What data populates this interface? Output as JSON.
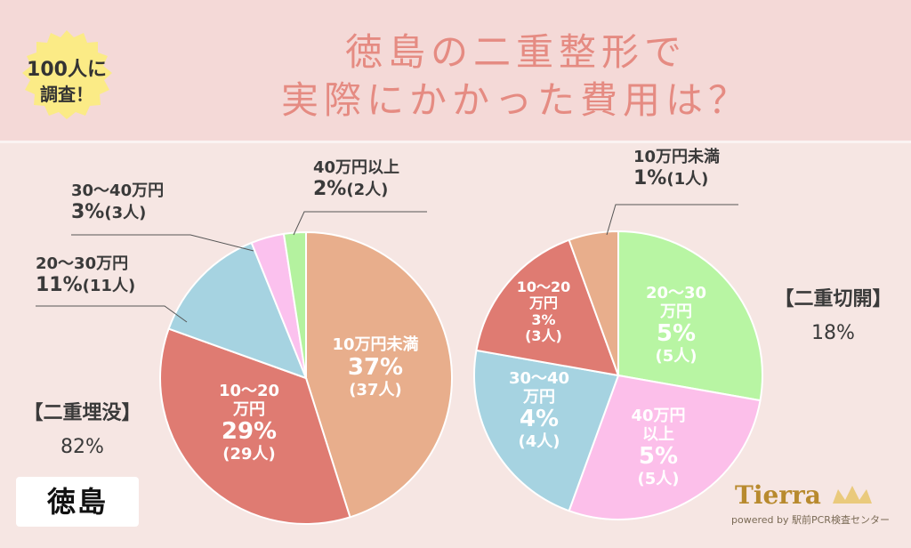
{
  "header": {
    "title_line1": "徳島の二重整形で",
    "title_line2": "実際にかかった費用は？",
    "badge_line1": "100人に",
    "badge_line2": "調査！"
  },
  "place_label": "徳島",
  "logo": {
    "name": "Tierra",
    "sub": "powered by 駅前PCR検査センター"
  },
  "colors": {
    "under10": "#e8ae8c",
    "r10_20": "#df7b72",
    "r20_30": "#a6d3e1",
    "r30_40": "#fbc1ee",
    "over40": "#b4f29f",
    "c20_30": "#b8f5a3",
    "c40plus": "#fcbfea",
    "c30_40": "#a6d3e1",
    "c10_20": "#df7b72",
    "cunder10": "#e8ae8c"
  },
  "chart_data": [
    {
      "type": "pie",
      "group": "【二重埋没】",
      "group_pct": "82%",
      "slices": [
        {
          "name": "10万円未満",
          "value": 37,
          "pct": "37%",
          "count": "(37人)"
        },
        {
          "name": "10〜20万円",
          "value": 29,
          "pct": "29%",
          "count": "(29人)"
        },
        {
          "name": "20〜30万円",
          "value": 11,
          "pct": "11%",
          "count": "(11人)"
        },
        {
          "name": "30〜40万円",
          "value": 3,
          "pct": "3%",
          "count": "(3人)"
        },
        {
          "name": "40万円以上",
          "value": 2,
          "pct": "2%",
          "count": "(2人)"
        }
      ]
    },
    {
      "type": "pie",
      "group": "【二重切開】",
      "group_pct": "18%",
      "slices": [
        {
          "name": "20〜30万円",
          "value": 5,
          "pct": "5%",
          "count": "(5人)"
        },
        {
          "name": "40万円以上",
          "value": 5,
          "pct": "5%",
          "count": "(5人)"
        },
        {
          "name": "30〜40万円",
          "value": 4,
          "pct": "4%",
          "count": "(4人)"
        },
        {
          "name": "10〜20万円",
          "value": 3,
          "pct": "3%",
          "count": "(3人)"
        },
        {
          "name": "10万円未満",
          "value": 1,
          "pct": "1%",
          "count": "(1人)"
        }
      ]
    }
  ],
  "inside_labels": {
    "l_under10_line1": "10万円未満",
    "l_1020_line1": "10〜20",
    "l_1020_line2": "万円",
    "r_2030_line1": "20〜30",
    "r_2030_line2": "万円",
    "r_40_line1": "40万円",
    "r_40_line2": "以上",
    "r_3040_line1": "30〜40",
    "r_3040_line2": "万円",
    "r_1020_line1": "10〜20",
    "r_1020_line2": "万円"
  }
}
